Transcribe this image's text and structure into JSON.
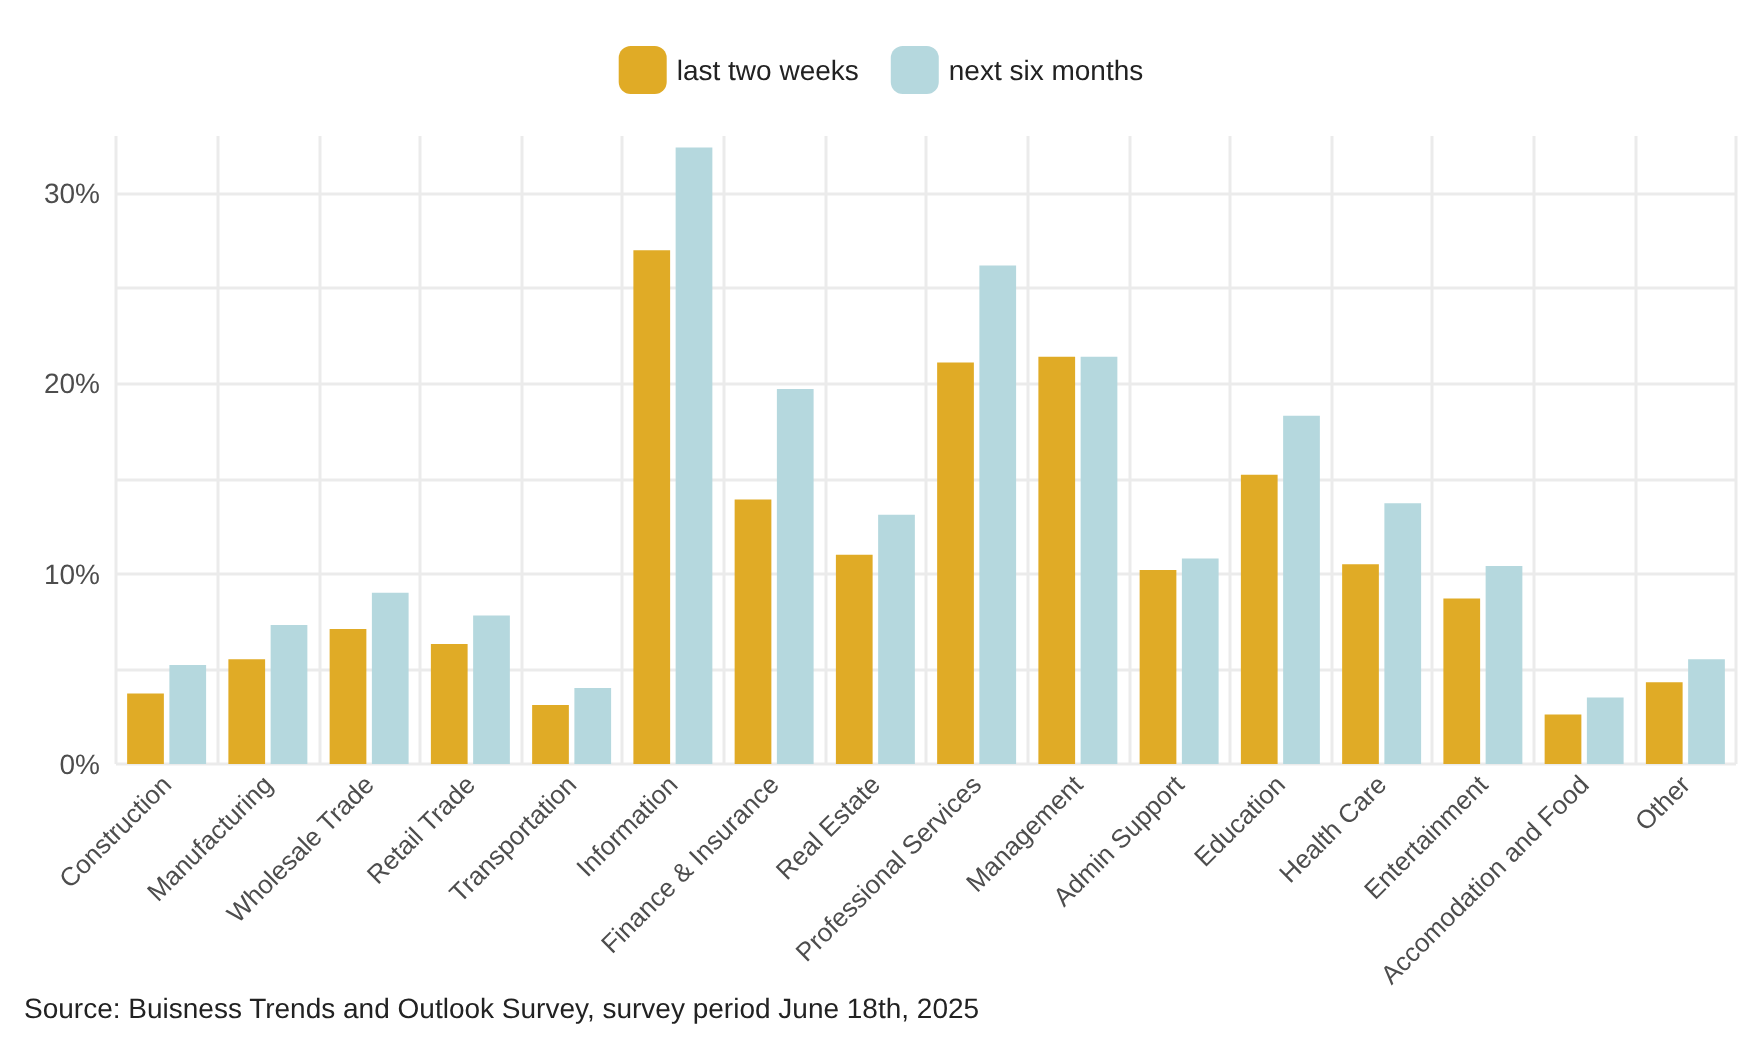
{
  "chart_data": {
    "type": "bar",
    "categories": [
      "Construction",
      "Manufacturing",
      "Wholesale Trade",
      "Retail Trade",
      "Transportation",
      "Information",
      "Finance & Insurance",
      "Real Estate",
      "Professional Services",
      "Management",
      "Admin Support",
      "Education",
      "Health Care",
      "Entertainment",
      "Accomodation and Food",
      "Other"
    ],
    "series": [
      {
        "name": "last two weeks",
        "color": "#e0ab26",
        "values": [
          3.7,
          5.5,
          7.1,
          6.3,
          3.1,
          27.0,
          13.9,
          11.0,
          21.1,
          21.4,
          10.2,
          15.2,
          10.5,
          8.7,
          2.6,
          4.3
        ]
      },
      {
        "name": "next six months",
        "color": "#b5d8de",
        "values": [
          5.2,
          7.3,
          9.0,
          7.8,
          4.0,
          32.4,
          19.7,
          13.1,
          26.2,
          21.4,
          10.8,
          18.3,
          13.7,
          10.4,
          3.5,
          5.5
        ]
      }
    ],
    "ylim": [
      0,
      33
    ],
    "yticks": [
      {
        "value": 0,
        "label": "0%"
      },
      {
        "value": 5,
        "label": null
      },
      {
        "value": 10,
        "label": "10%"
      },
      {
        "value": 15,
        "label": null
      },
      {
        "value": 20,
        "label": "20%"
      },
      {
        "value": 25,
        "label": null
      },
      {
        "value": 30,
        "label": "30%"
      }
    ],
    "grid": true,
    "legend": "top",
    "annotations": [
      "Source: Buisness Trends and Outlook Survey, survey period June 18th, 2025"
    ]
  }
}
